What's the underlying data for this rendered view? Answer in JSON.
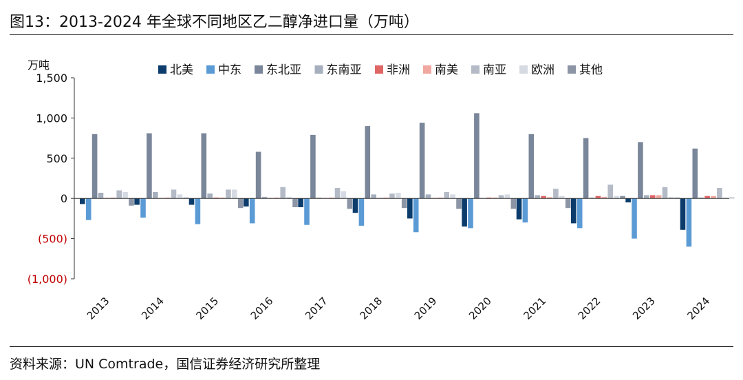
{
  "title": "图13：2013-2024 年全球不同地区乙二醇净进口量（万吨）",
  "source": "资料来源：UN Comtrade，国信证券经济研究所整理",
  "chart_data": {
    "type": "bar",
    "unit_label": "万吨",
    "categories": [
      "2013",
      "2014",
      "2015",
      "2016",
      "2017",
      "2018",
      "2019",
      "2020",
      "2021",
      "2022",
      "2023",
      "2024"
    ],
    "ylim": [
      -1000,
      1500
    ],
    "yticks": [
      1500,
      1000,
      500,
      0,
      -500,
      -1000
    ],
    "ytick_labels": [
      "1,500",
      "1,000",
      "500",
      "0",
      "(500)",
      "(1,000)"
    ],
    "grid": false,
    "legend_position": "top",
    "series": [
      {
        "name": "北美",
        "color": "#0b3c6b",
        "values": [
          -70,
          -80,
          -80,
          -100,
          -110,
          -180,
          -250,
          -350,
          -260,
          -310,
          -50,
          -390
        ]
      },
      {
        "name": "中东",
        "color": "#5b9bd5",
        "values": [
          -270,
          -240,
          -320,
          -310,
          -330,
          -340,
          -420,
          -370,
          -300,
          -370,
          -500,
          -600
        ]
      },
      {
        "name": "东北亚",
        "color": "#7a8699",
        "values": [
          800,
          810,
          810,
          580,
          790,
          900,
          940,
          1060,
          800,
          750,
          700,
          620
        ]
      },
      {
        "name": "东南亚",
        "color": "#a6afbd",
        "values": [
          70,
          80,
          60,
          20,
          10,
          50,
          50,
          5,
          40,
          10,
          40,
          10
        ]
      },
      {
        "name": "非洲",
        "color": "#e06666",
        "values": [
          5,
          5,
          10,
          5,
          5,
          5,
          5,
          10,
          30,
          30,
          40,
          30
        ]
      },
      {
        "name": "南美",
        "color": "#f0a8a0",
        "values": [
          10,
          10,
          10,
          10,
          10,
          10,
          10,
          10,
          15,
          20,
          40,
          30
        ]
      },
      {
        "name": "南亚",
        "color": "#b4bac6",
        "values": [
          100,
          110,
          110,
          140,
          130,
          60,
          80,
          40,
          120,
          170,
          140,
          130
        ]
      },
      {
        "name": "欧洲",
        "color": "#d6dae2",
        "values": [
          80,
          50,
          110,
          20,
          90,
          70,
          50,
          50,
          30,
          30,
          20,
          10
        ]
      },
      {
        "name": "其他",
        "color": "#8c95a5",
        "values": [
          -90,
          10,
          -120,
          -110,
          -130,
          -120,
          -130,
          -130,
          -120,
          30,
          10,
          10
        ]
      }
    ]
  }
}
